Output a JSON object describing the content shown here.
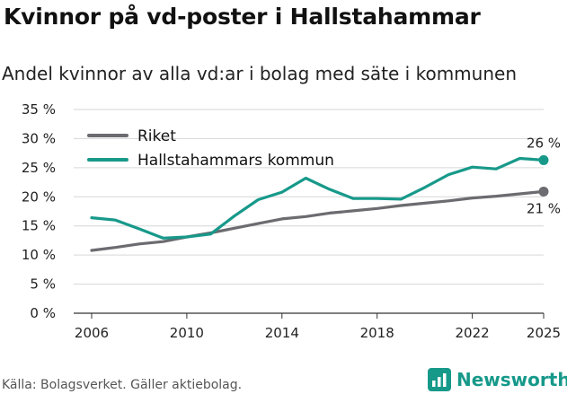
{
  "title": "Kvinnor på vd-poster i Hallstahammar",
  "subtitle": "Andel kvinnor av alla vd:ar i bolag med säte i kommunen",
  "source": "Källa: Bolagsverket. Gäller aktiebolag.",
  "brand": "Newsworthy",
  "colors": {
    "riket": "#6b6b70",
    "kommun": "#17998a",
    "grid": "#d6d6d6",
    "brand": "#17998a"
  },
  "chart_data": {
    "type": "line",
    "x": [
      2006,
      2007,
      2008,
      2009,
      2010,
      2011,
      2012,
      2013,
      2014,
      2015,
      2016,
      2017,
      2018,
      2019,
      2020,
      2021,
      2022,
      2023,
      2024,
      2025
    ],
    "series": [
      {
        "name": "Riket",
        "color": "#6b6b70",
        "values": [
          10.8,
          11.3,
          11.9,
          12.3,
          13.1,
          13.8,
          14.6,
          15.4,
          16.2,
          16.6,
          17.2,
          17.6,
          18.0,
          18.5,
          18.9,
          19.3,
          19.8,
          20.1,
          20.5,
          20.9
        ]
      },
      {
        "name": "Hallstahammars kommun",
        "color": "#17998a",
        "values": [
          16.4,
          16.0,
          14.5,
          12.9,
          13.1,
          13.6,
          16.7,
          19.5,
          20.8,
          23.2,
          21.3,
          19.7,
          19.7,
          19.6,
          21.6,
          23.8,
          25.1,
          24.8,
          26.6,
          26.3
        ]
      }
    ],
    "end_labels": [
      "26 %",
      "21 %"
    ],
    "y_ticks": [
      0,
      5,
      10,
      15,
      20,
      25,
      30,
      35
    ],
    "y_tick_labels": [
      "0 %",
      "5 %",
      "10 %",
      "15 %",
      "20 %",
      "25 %",
      "30 %",
      "35 %"
    ],
    "x_ticks": [
      2006,
      2010,
      2014,
      2018,
      2022,
      2025
    ],
    "x_tick_labels": [
      "2006",
      "2010",
      "2014",
      "2018",
      "2022",
      "2025"
    ],
    "ylim": [
      0,
      35
    ],
    "xlabel": "",
    "ylabel": "",
    "legend": [
      "Riket",
      "Hallstahammars kommun"
    ],
    "legend_position": "top-left"
  }
}
